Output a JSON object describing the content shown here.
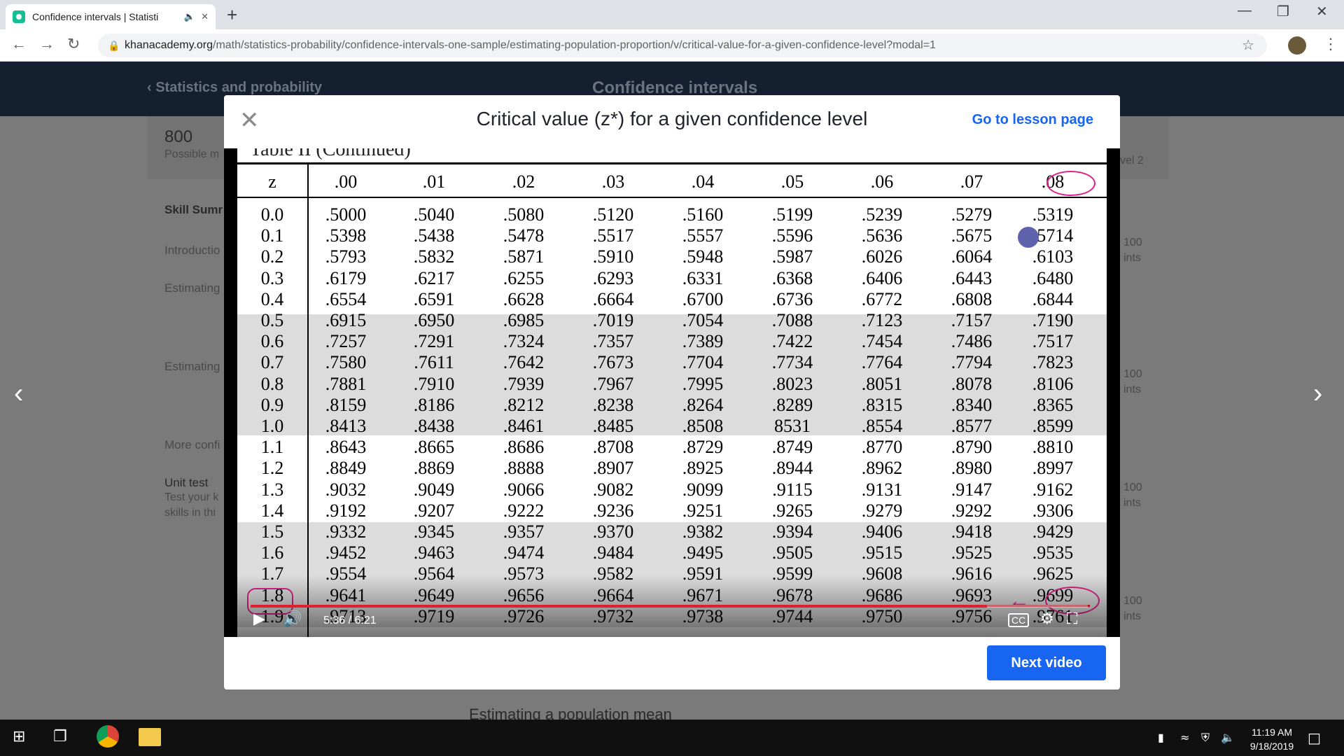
{
  "browser": {
    "tab_title": "Confidence intervals | Statisti",
    "url_host": "khanacademy.org",
    "url_path": "/math/statistics-probability/confidence-intervals-one-sample/estimating-population-proportion/v/critical-value-for-a-given-confidence-level?modal=1"
  },
  "background": {
    "breadcrumb": "Statistics and probability",
    "unit_title": "Confidence intervals",
    "mastery_points": "800",
    "possible_label": "Possible m",
    "skill_summary": "Skill Sumr",
    "sidebar_items": [
      "Introductio",
      "Estimating",
      "Estimating",
      "More confi",
      "Unit test"
    ],
    "unit_test_desc_1": "Test your k",
    "unit_test_desc_2": "skills in thi",
    "level_label": "vel 2",
    "points_labels": [
      "100",
      "ints",
      "100",
      "ints",
      "100",
      "ints",
      "100",
      "ints"
    ],
    "bottom_heading": "Estimating a population mean"
  },
  "modal": {
    "title": "Critical value (z*) for a given confidence level",
    "lesson_link": "Go to lesson page",
    "next_button": "Next video"
  },
  "video": {
    "cut_heading": "Table II    (Continued)",
    "time_display": "5:36 / 6:21",
    "progress": 0.88,
    "z_header": "z",
    "col_headers": [
      ".00",
      ".01",
      ".02",
      ".03",
      ".04",
      ".05",
      ".06",
      ".07",
      ".08"
    ],
    "rows": [
      {
        "z": "0.0",
        "v": [
          ".5000",
          ".5040",
          ".5080",
          ".5120",
          ".5160",
          ".5199",
          ".5239",
          ".5279",
          ".5319"
        ]
      },
      {
        "z": "0.1",
        "v": [
          ".5398",
          ".5438",
          ".5478",
          ".5517",
          ".5557",
          ".5596",
          ".5636",
          ".5675",
          ".5714"
        ]
      },
      {
        "z": "0.2",
        "v": [
          ".5793",
          ".5832",
          ".5871",
          ".5910",
          ".5948",
          ".5987",
          ".6026",
          ".6064",
          ".6103"
        ]
      },
      {
        "z": "0.3",
        "v": [
          ".6179",
          ".6217",
          ".6255",
          ".6293",
          ".6331",
          ".6368",
          ".6406",
          ".6443",
          ".6480"
        ]
      },
      {
        "z": "0.4",
        "v": [
          ".6554",
          ".6591",
          ".6628",
          ".6664",
          ".6700",
          ".6736",
          ".6772",
          ".6808",
          ".6844"
        ]
      },
      {
        "z": "0.5",
        "v": [
          ".6915",
          ".6950",
          ".6985",
          ".7019",
          ".7054",
          ".7088",
          ".7123",
          ".7157",
          ".7190"
        ]
      },
      {
        "z": "0.6",
        "v": [
          ".7257",
          ".7291",
          ".7324",
          ".7357",
          ".7389",
          ".7422",
          ".7454",
          ".7486",
          ".7517"
        ]
      },
      {
        "z": "0.7",
        "v": [
          ".7580",
          ".7611",
          ".7642",
          ".7673",
          ".7704",
          ".7734",
          ".7764",
          ".7794",
          ".7823"
        ]
      },
      {
        "z": "0.8",
        "v": [
          ".7881",
          ".7910",
          ".7939",
          ".7967",
          ".7995",
          ".8023",
          ".8051",
          ".8078",
          ".8106"
        ]
      },
      {
        "z": "0.9",
        "v": [
          ".8159",
          ".8186",
          ".8212",
          ".8238",
          ".8264",
          ".8289",
          ".8315",
          ".8340",
          ".8365"
        ]
      },
      {
        "z": "1.0",
        "v": [
          ".8413",
          ".8438",
          ".8461",
          ".8485",
          ".8508",
          "8531",
          ".8554",
          ".8577",
          ".8599"
        ]
      },
      {
        "z": "1.1",
        "v": [
          ".8643",
          ".8665",
          ".8686",
          ".8708",
          ".8729",
          ".8749",
          ".8770",
          ".8790",
          ".8810"
        ]
      },
      {
        "z": "1.2",
        "v": [
          ".8849",
          ".8869",
          ".8888",
          ".8907",
          ".8925",
          ".8944",
          ".8962",
          ".8980",
          ".8997"
        ]
      },
      {
        "z": "1.3",
        "v": [
          ".9032",
          ".9049",
          ".9066",
          ".9082",
          ".9099",
          ".9115",
          ".9131",
          ".9147",
          ".9162"
        ]
      },
      {
        "z": "1.4",
        "v": [
          ".9192",
          ".9207",
          ".9222",
          ".9236",
          ".9251",
          ".9265",
          ".9279",
          ".9292",
          ".9306"
        ]
      },
      {
        "z": "1.5",
        "v": [
          ".9332",
          ".9345",
          ".9357",
          ".9370",
          ".9382",
          ".9394",
          ".9406",
          ".9418",
          ".9429"
        ]
      },
      {
        "z": "1.6",
        "v": [
          ".9452",
          ".9463",
          ".9474",
          ".9484",
          ".9495",
          ".9505",
          ".9515",
          ".9525",
          ".9535"
        ]
      },
      {
        "z": "1.7",
        "v": [
          ".9554",
          ".9564",
          ".9573",
          ".9582",
          ".9591",
          ".9599",
          ".9608",
          ".9616",
          ".9625"
        ]
      },
      {
        "z": "1.8",
        "v": [
          ".9641",
          ".9649",
          ".9656",
          ".9664",
          ".9671",
          ".9678",
          ".9686",
          ".9693",
          ".9699"
        ]
      },
      {
        "z": "1.9",
        "v": [
          ".9713",
          ".9719",
          ".9726",
          ".9732",
          ".9738",
          ".9744",
          ".9750",
          ".9756",
          ".9761"
        ]
      }
    ]
  },
  "taskbar": {
    "time": "11:19 AM",
    "date": "9/18/2019"
  },
  "colors": {
    "accent": "#1865f2",
    "annotation": "#e0208a",
    "progress": "#e0202c"
  }
}
